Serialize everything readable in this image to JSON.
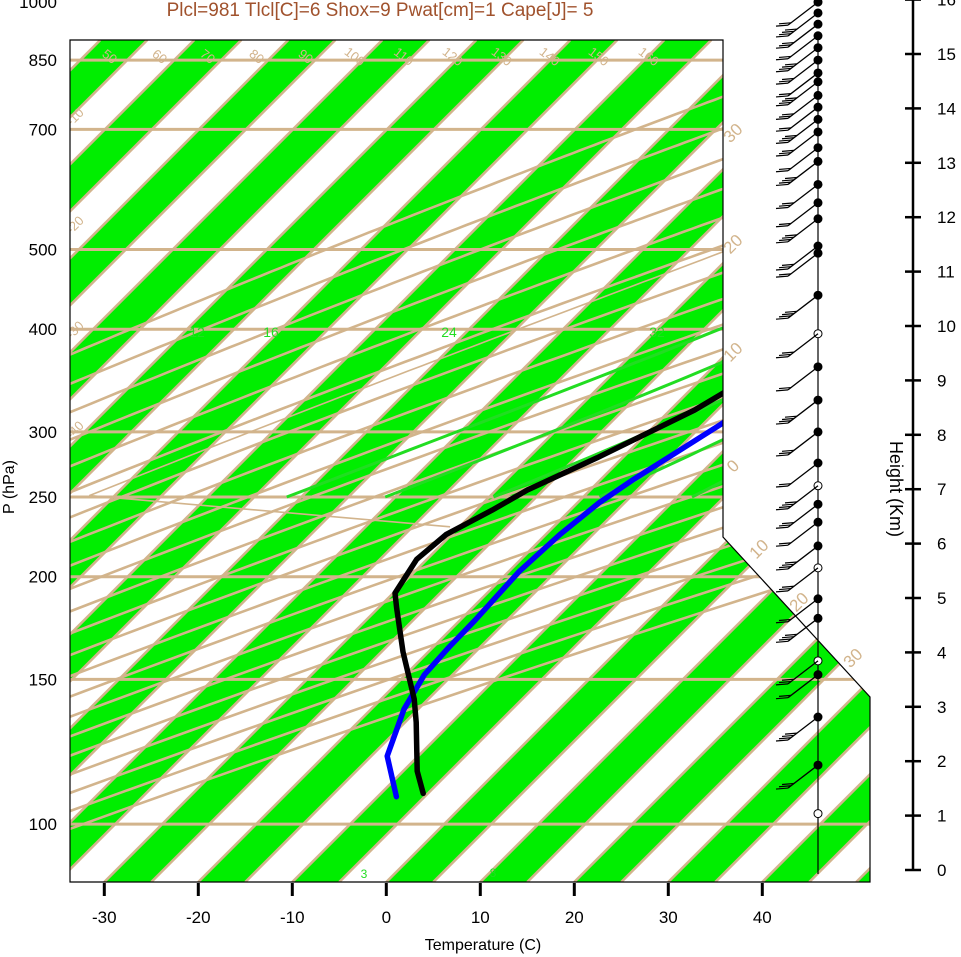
{
  "chart_data": {
    "type": "line",
    "title": "Plcl=981 Tlcl[C]=6 Shox=9 Pwat[cm]=1 Cape[J]= 5",
    "xlabel": "Temperature (C)",
    "ylabel": "P (hPa)",
    "y2label": "Height (Km)",
    "x_ticks": [
      "-30",
      "-20",
      "-10",
      "0",
      "10",
      "20",
      "30",
      "40"
    ],
    "pressure_ticks": [
      "100",
      "150",
      "200",
      "250",
      "300",
      "400",
      "500",
      "700",
      "850",
      "1000"
    ],
    "height_ticks": [
      "0",
      "1",
      "2",
      "3",
      "4",
      "5",
      "6",
      "7",
      "8",
      "9",
      "10",
      "11",
      "12",
      "13",
      "14",
      "15",
      "16"
    ],
    "dry_adiabat_labels": [
      "50",
      "60",
      "70",
      "80",
      "90",
      "100",
      "110",
      "120",
      "130",
      "140",
      "150",
      "160"
    ],
    "isotherm_labels": [
      "30",
      "20",
      "10",
      "0",
      "-10",
      "-20",
      "-30",
      "-40",
      "10",
      "20",
      "30"
    ],
    "moist_adiabat_labels": [
      "12",
      "16",
      "24",
      "32"
    ],
    "mixing_ratio_labels": [
      "3",
      "8"
    ],
    "grid": true,
    "series": [
      {
        "name": "",
        "color": "#0000ff",
        "points": [
          [
            8.5,
            1002
          ],
          [
            8.5,
            980
          ],
          [
            8,
            955
          ],
          [
            3.2,
            900
          ],
          [
            0.8,
            880
          ],
          [
            1.2,
            852
          ],
          [
            2,
            830
          ],
          [
            2.4,
            810
          ],
          [
            3,
            790
          ],
          [
            2.8,
            770
          ],
          [
            0,
            720
          ],
          [
            -4.5,
            660
          ],
          [
            -5.2,
            630
          ],
          [
            -3.2,
            590
          ],
          [
            -1.4,
            550
          ],
          [
            -1.5,
            535
          ],
          [
            -3.4,
            497
          ],
          [
            -5.5,
            463
          ],
          [
            -7,
            435
          ],
          [
            -8.4,
            400
          ],
          [
            -9.7,
            368
          ],
          [
            -11.6,
            331
          ],
          [
            -13.2,
            305
          ],
          [
            -16.5,
            263
          ],
          [
            -17.7,
            246
          ],
          [
            -18.5,
            225
          ],
          [
            -18.9,
            203
          ],
          [
            -18.4,
            177
          ],
          [
            -18.3,
            164
          ],
          [
            -18,
            152
          ],
          [
            -16.5,
            138
          ],
          [
            -13.3,
            121
          ],
          [
            -8,
            108
          ]
        ]
      },
      {
        "name": "",
        "color": "#000000",
        "points": [
          [
            9,
            1002
          ],
          [
            8.5,
            984
          ],
          [
            7.5,
            960
          ],
          [
            7.8,
            920
          ],
          [
            6.8,
            900
          ],
          [
            5,
            880
          ],
          [
            4,
            860
          ],
          [
            3,
            840
          ],
          [
            3.2,
            815
          ],
          [
            3.4,
            790
          ],
          [
            3.3,
            755
          ],
          [
            3,
            720
          ],
          [
            2.5,
            665
          ],
          [
            1.5,
            620
          ],
          [
            -0.2,
            580
          ],
          [
            -0.9,
            560
          ],
          [
            -3.6,
            520
          ],
          [
            -7.8,
            450
          ],
          [
            -12.2,
            390
          ],
          [
            -14.8,
            353
          ],
          [
            -17.4,
            319
          ],
          [
            -22.7,
            279
          ],
          [
            -26.7,
            255
          ],
          [
            -28.3,
            241
          ],
          [
            -30.6,
            225
          ],
          [
            -31.1,
            210
          ],
          [
            -29.8,
            191
          ],
          [
            -28,
            183
          ],
          [
            -22.7,
            162
          ],
          [
            -16.5,
            142
          ],
          [
            -13.8,
            133
          ],
          [
            -8.5,
            116
          ],
          [
            -5.5,
            109
          ]
        ]
      }
    ],
    "wind_levels_hPa": [
      103,
      118,
      135,
      152,
      158,
      178,
      188,
      205,
      218,
      233,
      245,
      258,
      275,
      300,
      328,
      360,
      395,
      440,
      495,
      505,
      545,
      570,
      600,
      640,
      665,
      695,
      720,
      745,
      770,
      800,
      820,
      850,
      880,
      910,
      940,
      970,
      1000
    ]
  }
}
